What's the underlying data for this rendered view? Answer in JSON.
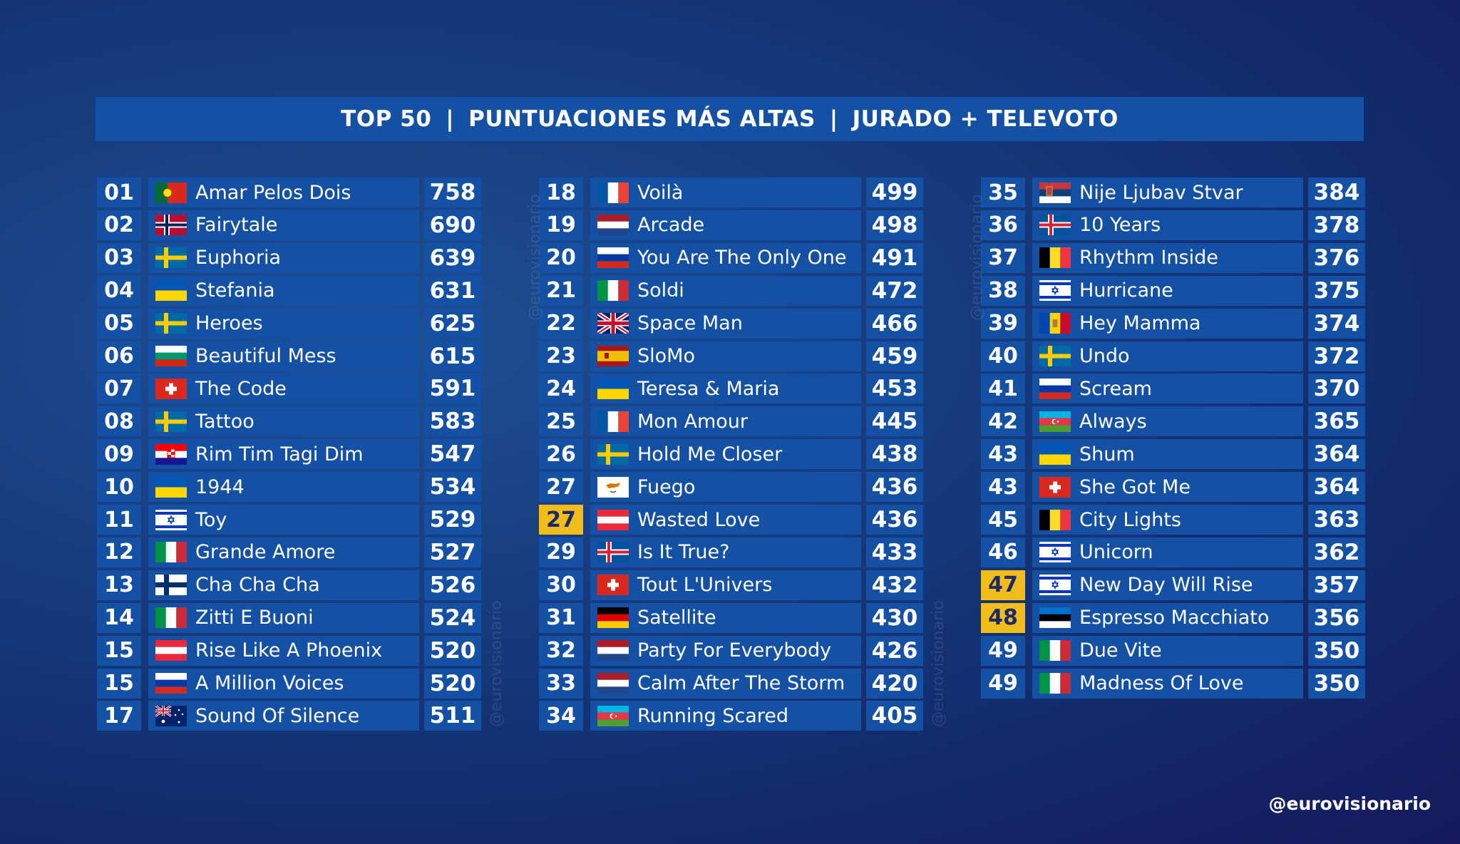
{
  "banner": {
    "part1": "TOP 50",
    "part2": "PUNTUACIONES MÁS ALTAS",
    "part3": "JURADO + TELEVOTO"
  },
  "watermark": "@eurovisionario",
  "handle": "@eurovisionario",
  "entries": [
    {
      "rank": "01",
      "flag": "portugal",
      "song": "Amar Pelos Dois",
      "points": "758",
      "highlight": false
    },
    {
      "rank": "02",
      "flag": "norway",
      "song": "Fairytale",
      "points": "690",
      "highlight": false
    },
    {
      "rank": "03",
      "flag": "sweden",
      "song": "Euphoria",
      "points": "639",
      "highlight": false
    },
    {
      "rank": "04",
      "flag": "ukraine",
      "song": "Stefania",
      "points": "631",
      "highlight": false
    },
    {
      "rank": "05",
      "flag": "sweden",
      "song": "Heroes",
      "points": "625",
      "highlight": false
    },
    {
      "rank": "06",
      "flag": "bulgaria",
      "song": "Beautiful Mess",
      "points": "615",
      "highlight": false
    },
    {
      "rank": "07",
      "flag": "switzerland",
      "song": "The Code",
      "points": "591",
      "highlight": false
    },
    {
      "rank": "08",
      "flag": "sweden",
      "song": "Tattoo",
      "points": "583",
      "highlight": false
    },
    {
      "rank": "09",
      "flag": "croatia",
      "song": "Rim Tim Tagi Dim",
      "points": "547",
      "highlight": false
    },
    {
      "rank": "10",
      "flag": "ukraine",
      "song": "1944",
      "points": "534",
      "highlight": false
    },
    {
      "rank": "11",
      "flag": "israel",
      "song": "Toy",
      "points": "529",
      "highlight": false
    },
    {
      "rank": "12",
      "flag": "italy",
      "song": "Grande Amore",
      "points": "527",
      "highlight": false
    },
    {
      "rank": "13",
      "flag": "finland",
      "song": "Cha Cha Cha",
      "points": "526",
      "highlight": false
    },
    {
      "rank": "14",
      "flag": "italy",
      "song": "Zitti E Buoni",
      "points": "524",
      "highlight": false
    },
    {
      "rank": "15",
      "flag": "austria",
      "song": "Rise Like A Phoenix",
      "points": "520",
      "highlight": false
    },
    {
      "rank": "15",
      "flag": "russia",
      "song": "A Million Voices",
      "points": "520",
      "highlight": false
    },
    {
      "rank": "17",
      "flag": "australia",
      "song": "Sound Of Silence",
      "points": "511",
      "highlight": false
    },
    {
      "rank": "18",
      "flag": "france",
      "song": "Voilà",
      "points": "499",
      "highlight": false
    },
    {
      "rank": "19",
      "flag": "netherlands",
      "song": "Arcade",
      "points": "498",
      "highlight": false
    },
    {
      "rank": "20",
      "flag": "russia",
      "song": "You Are The Only One",
      "points": "491",
      "highlight": false
    },
    {
      "rank": "21",
      "flag": "italy",
      "song": "Soldi",
      "points": "472",
      "highlight": false
    },
    {
      "rank": "22",
      "flag": "uk",
      "song": "Space Man",
      "points": "466",
      "highlight": false
    },
    {
      "rank": "23",
      "flag": "spain",
      "song": "SloMo",
      "points": "459",
      "highlight": false
    },
    {
      "rank": "24",
      "flag": "ukraine",
      "song": "Teresa & Maria",
      "points": "453",
      "highlight": false
    },
    {
      "rank": "25",
      "flag": "france",
      "song": "Mon Amour",
      "points": "445",
      "highlight": false
    },
    {
      "rank": "26",
      "flag": "sweden",
      "song": "Hold Me Closer",
      "points": "438",
      "highlight": false
    },
    {
      "rank": "27",
      "flag": "cyprus",
      "song": "Fuego",
      "points": "436",
      "highlight": false
    },
    {
      "rank": "27",
      "flag": "austria",
      "song": "Wasted Love",
      "points": "436",
      "highlight": true
    },
    {
      "rank": "29",
      "flag": "iceland",
      "song": "Is It True?",
      "points": "433",
      "highlight": false
    },
    {
      "rank": "30",
      "flag": "switzerland",
      "song": "Tout L'Univers",
      "points": "432",
      "highlight": false
    },
    {
      "rank": "31",
      "flag": "germany",
      "song": "Satellite",
      "points": "430",
      "highlight": false
    },
    {
      "rank": "32",
      "flag": "netherlands",
      "song": "Party For Everybody",
      "points": "426",
      "highlight": false
    },
    {
      "rank": "33",
      "flag": "netherlands",
      "song": "Calm After The Storm",
      "points": "420",
      "highlight": false
    },
    {
      "rank": "34",
      "flag": "azerbaijan",
      "song": "Running Scared",
      "points": "405",
      "highlight": false
    },
    {
      "rank": "35",
      "flag": "serbia",
      "song": "Nije Ljubav Stvar",
      "points": "384",
      "highlight": false
    },
    {
      "rank": "36",
      "flag": "iceland",
      "song": "10 Years",
      "points": "378",
      "highlight": false
    },
    {
      "rank": "37",
      "flag": "belgium",
      "song": "Rhythm Inside",
      "points": "376",
      "highlight": false
    },
    {
      "rank": "38",
      "flag": "israel",
      "song": "Hurricane",
      "points": "375",
      "highlight": false
    },
    {
      "rank": "39",
      "flag": "moldova",
      "song": "Hey Mamma",
      "points": "374",
      "highlight": false
    },
    {
      "rank": "40",
      "flag": "sweden",
      "song": "Undo",
      "points": "372",
      "highlight": false
    },
    {
      "rank": "41",
      "flag": "russia",
      "song": "Scream",
      "points": "370",
      "highlight": false
    },
    {
      "rank": "42",
      "flag": "azerbaijan",
      "song": "Always",
      "points": "365",
      "highlight": false
    },
    {
      "rank": "43",
      "flag": "ukraine",
      "song": "Shum",
      "points": "364",
      "highlight": false
    },
    {
      "rank": "43",
      "flag": "switzerland",
      "song": "She Got Me",
      "points": "364",
      "highlight": false
    },
    {
      "rank": "45",
      "flag": "belgium",
      "song": "City Lights",
      "points": "363",
      "highlight": false
    },
    {
      "rank": "46",
      "flag": "israel",
      "song": "Unicorn",
      "points": "362",
      "highlight": false
    },
    {
      "rank": "47",
      "flag": "israel",
      "song": "New Day Will Rise",
      "points": "357",
      "highlight": true
    },
    {
      "rank": "48",
      "flag": "estonia",
      "song": "Espresso Macchiato",
      "points": "356",
      "highlight": true
    },
    {
      "rank": "49",
      "flag": "italy",
      "song": "Due Vite",
      "points": "350",
      "highlight": false
    },
    {
      "rank": "49",
      "flag": "italy",
      "song": "Madness Of Love",
      "points": "350",
      "highlight": false
    }
  ]
}
